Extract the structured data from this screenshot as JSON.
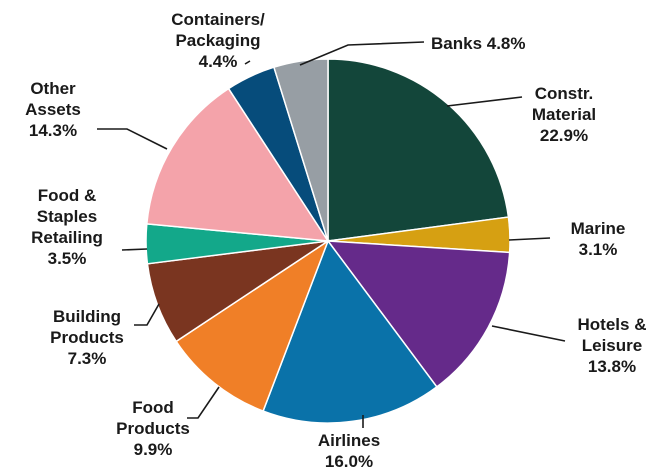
{
  "chart_data": {
    "type": "pie",
    "start_angle_deg": 0,
    "direction": "clockwise",
    "legend": "none",
    "slices": [
      {
        "name": "Constr. Material",
        "label_lines": [
          "Constr.",
          "Material",
          "22.9%"
        ],
        "value": 22.9,
        "color": "#13463a"
      },
      {
        "name": "Marine",
        "label_lines": [
          "Marine",
          "3.1%"
        ],
        "value": 3.1,
        "color": "#d6a012"
      },
      {
        "name": "Hotels & Leisure",
        "label_lines": [
          "Hotels &",
          "Leisure",
          "13.8%"
        ],
        "value": 13.8,
        "color": "#652a8a"
      },
      {
        "name": "Airlines",
        "label_lines": [
          "Airlines",
          "16.0%"
        ],
        "value": 16.0,
        "color": "#0a72a9"
      },
      {
        "name": "Food Products",
        "label_lines": [
          "Food",
          "Products",
          "9.9%"
        ],
        "value": 9.9,
        "color": "#f07f27"
      },
      {
        "name": "Building Products",
        "label_lines": [
          "Building",
          "Products",
          "7.3%"
        ],
        "value": 7.3,
        "color": "#7a3520"
      },
      {
        "name": "Food & Staples Retailing",
        "label_lines": [
          "Food &",
          "Staples",
          "Retailing",
          "3.5%"
        ],
        "value": 3.5,
        "color": "#13a88a"
      },
      {
        "name": "Other Assets",
        "label_lines": [
          "Other",
          "Assets",
          "14.3%"
        ],
        "value": 14.3,
        "color": "#f4a3aa"
      },
      {
        "name": "Containers/Packaging",
        "label_lines": [
          "Containers/",
          "Packaging",
          "4.4%"
        ],
        "value": 4.4,
        "color": "#064c7b"
      },
      {
        "name": "Banks",
        "label_lines": [
          "Banks 4.8%"
        ],
        "value": 4.8,
        "color": "#979ea4"
      }
    ]
  }
}
